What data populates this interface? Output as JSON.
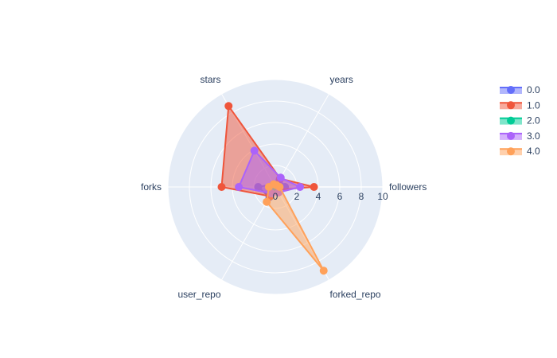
{
  "chart_data": {
    "type": "radar",
    "axes": [
      "followers",
      "years",
      "stars",
      "forks",
      "user_repo",
      "forked_repo"
    ],
    "radial_range": [
      0,
      10
    ],
    "radial_ticks": [
      "0",
      "2",
      "4",
      "6",
      "8",
      "10"
    ],
    "legend_position": "top-right",
    "series": [
      {
        "name": "0.0",
        "color": "#636efa",
        "values": [
          0.9,
          0.8,
          0.3,
          1.6,
          1.1,
          0.3
        ]
      },
      {
        "name": "1.0",
        "color": "#ef553b",
        "values": [
          3.6,
          0.9,
          8.7,
          5.0,
          1.0,
          0.3
        ]
      },
      {
        "name": "2.0",
        "color": "#00cc96",
        "values": [
          0.3,
          0.2,
          0.2,
          0.4,
          0.3,
          0.2
        ]
      },
      {
        "name": "3.0",
        "color": "#ab63fa",
        "values": [
          2.3,
          1.0,
          3.9,
          3.4,
          0.7,
          0.6
        ]
      },
      {
        "name": "4.0",
        "color": "#ffa15a",
        "values": [
          0.4,
          0.2,
          0.3,
          0.6,
          1.6,
          9.0
        ]
      }
    ]
  }
}
